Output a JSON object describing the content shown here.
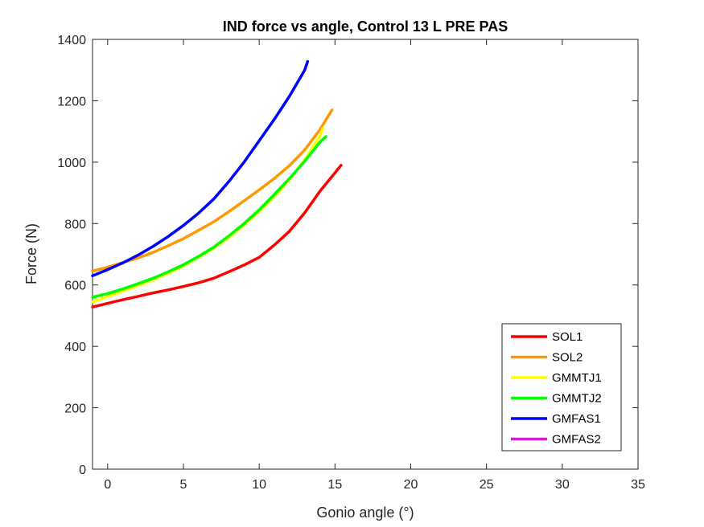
{
  "chart_data": {
    "type": "line",
    "title": "IND force vs angle, Control 13 L PRE PAS",
    "xlabel": "Gonio angle (°)",
    "ylabel": "Force (N)",
    "xlim": [
      -1,
      35
    ],
    "ylim": [
      0,
      1400
    ],
    "xticks": [
      0,
      5,
      10,
      15,
      20,
      25,
      30,
      35
    ],
    "yticks": [
      0,
      200,
      400,
      600,
      800,
      1000,
      1200,
      1400
    ],
    "grid": false,
    "legend_position": "bottom-right",
    "series": [
      {
        "name": "SOL1",
        "color": "#ff0000",
        "x": [
          -1,
          0,
          1,
          2,
          3,
          4,
          5,
          6,
          7,
          8,
          9,
          10,
          11,
          12,
          13,
          14,
          15,
          15.4
        ],
        "y": [
          528,
          540,
          552,
          563,
          574,
          584,
          595,
          607,
          622,
          643,
          665,
          690,
          730,
          775,
          835,
          905,
          965,
          990
        ]
      },
      {
        "name": "SOL2",
        "color": "#ff9900",
        "x": [
          -1,
          0,
          1,
          2,
          3,
          4,
          5,
          6,
          7,
          8,
          9,
          10,
          11,
          12,
          13,
          14,
          14.8
        ],
        "y": [
          645,
          658,
          673,
          688,
          706,
          728,
          751,
          778,
          806,
          839,
          874,
          910,
          947,
          989,
          1040,
          1105,
          1170
        ]
      },
      {
        "name": "GMMTJ1",
        "color": "#ffff00",
        "x": [
          -1,
          0,
          1,
          2,
          3,
          4,
          5,
          6,
          7,
          8,
          9,
          10,
          11,
          12,
          13,
          14,
          14.2
        ],
        "y": [
          545,
          562,
          580,
          598,
          617,
          638,
          662,
          690,
          720,
          755,
          795,
          840,
          888,
          943,
          1008,
          1085,
          1110
        ]
      },
      {
        "name": "GMMTJ2",
        "color": "#00ff00",
        "x": [
          -1,
          0,
          1,
          2,
          3,
          4,
          5,
          6,
          7,
          8,
          9,
          10,
          11,
          12,
          13,
          14,
          14.4
        ],
        "y": [
          560,
          572,
          587,
          604,
          622,
          643,
          666,
          693,
          723,
          760,
          800,
          845,
          895,
          947,
          1003,
          1065,
          1083
        ]
      },
      {
        "name": "GMFAS1",
        "color": "#0000ff",
        "x": [
          -1,
          0,
          1,
          2,
          3,
          4,
          5,
          6,
          7,
          8,
          9,
          10,
          11,
          12,
          13,
          13.2
        ],
        "y": [
          630,
          650,
          672,
          697,
          726,
          758,
          794,
          834,
          880,
          937,
          1000,
          1070,
          1140,
          1215,
          1300,
          1328
        ]
      },
      {
        "name": "GMFAS2",
        "color": "#ff00ff",
        "x": [],
        "y": []
      }
    ]
  }
}
